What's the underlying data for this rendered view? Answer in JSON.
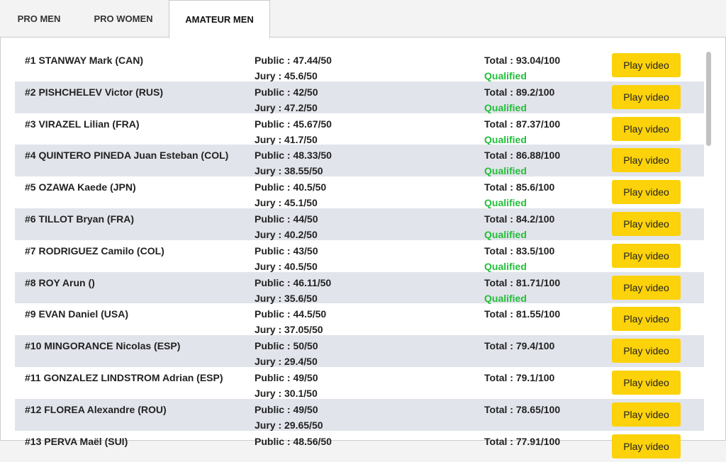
{
  "tabs": [
    "PRO MEN",
    "PRO WOMEN",
    "AMATEUR MEN"
  ],
  "active_tab": 2,
  "rows": [
    {
      "name": "#1 STANWAY Mark (CAN)",
      "public": "Public : 47.44/50",
      "jury": "Jury : 45.6/50",
      "total": "Total : 93.04/100",
      "status": "Qualified",
      "button": "Play video"
    },
    {
      "name": "#2 PISHCHELEV Victor (RUS)",
      "public": "Public : 42/50",
      "jury": "Jury : 47.2/50",
      "total": "Total : 89.2/100",
      "status": "Qualified",
      "button": "Play video"
    },
    {
      "name": "#3 VIRAZEL Lilian (FRA)",
      "public": "Public : 45.67/50",
      "jury": "Jury : 41.7/50",
      "total": "Total : 87.37/100",
      "status": "Qualified",
      "button": "Play video"
    },
    {
      "name": "#4 QUINTERO PINEDA Juan Esteban (COL)",
      "public": "Public : 48.33/50",
      "jury": "Jury : 38.55/50",
      "total": "Total : 86.88/100",
      "status": "Qualified",
      "button": "Play video"
    },
    {
      "name": "#5 OZAWA Kaede (JPN)",
      "public": "Public : 40.5/50",
      "jury": "Jury : 45.1/50",
      "total": "Total : 85.6/100",
      "status": "Qualified",
      "button": "Play video"
    },
    {
      "name": "#6 TILLOT Bryan (FRA)",
      "public": "Public : 44/50",
      "jury": "Jury : 40.2/50",
      "total": "Total : 84.2/100",
      "status": "Qualified",
      "button": "Play video"
    },
    {
      "name": "#7 RODRIGUEZ Camilo (COL)",
      "public": "Public : 43/50",
      "jury": "Jury : 40.5/50",
      "total": "Total : 83.5/100",
      "status": "Qualified",
      "button": "Play video"
    },
    {
      "name": "#8 ROY Arun ()",
      "public": "Public : 46.11/50",
      "jury": "Jury : 35.6/50",
      "total": "Total : 81.71/100",
      "status": "Qualified",
      "button": "Play video"
    },
    {
      "name": "#9 EVAN Daniel (USA)",
      "public": "Public : 44.5/50",
      "jury": "Jury : 37.05/50",
      "total": "Total : 81.55/100",
      "button": "Play video"
    },
    {
      "name": "#10 MINGORANCE Nicolas (ESP)",
      "public": "Public : 50/50",
      "jury": "Jury : 29.4/50",
      "total": "Total : 79.4/100",
      "button": "Play video"
    },
    {
      "name": "#11 GONZALEZ LINDSTROM Adrian (ESP)",
      "public": "Public : 49/50",
      "jury": "Jury : 30.1/50",
      "total": "Total : 79.1/100",
      "button": "Play video"
    },
    {
      "name": "#12 FLOREA Alexandre (ROU)",
      "public": "Public : 49/50",
      "jury": "Jury : 29.65/50",
      "total": "Total : 78.65/100",
      "button": "Play video"
    },
    {
      "name": "#13 PERVA Maël (SUI)",
      "public": "Public : 48.56/50",
      "jury": "",
      "total": "Total : 77.91/100",
      "button": "Play video"
    }
  ]
}
